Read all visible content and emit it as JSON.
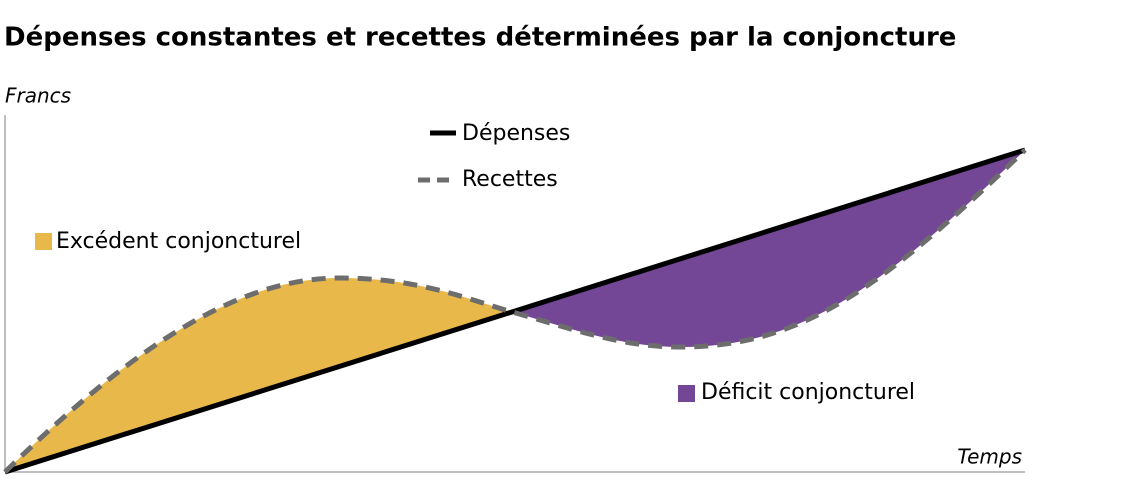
{
  "title": "Dépenses constantes et recettes déterminées par la conjoncture",
  "axes": {
    "y_label": "Francs",
    "x_label": "Temps"
  },
  "legend": [
    "Dépenses",
    "Recettes"
  ],
  "areas": [
    "Excédent conjoncturel",
    "Déficit conjoncturel"
  ]
}
